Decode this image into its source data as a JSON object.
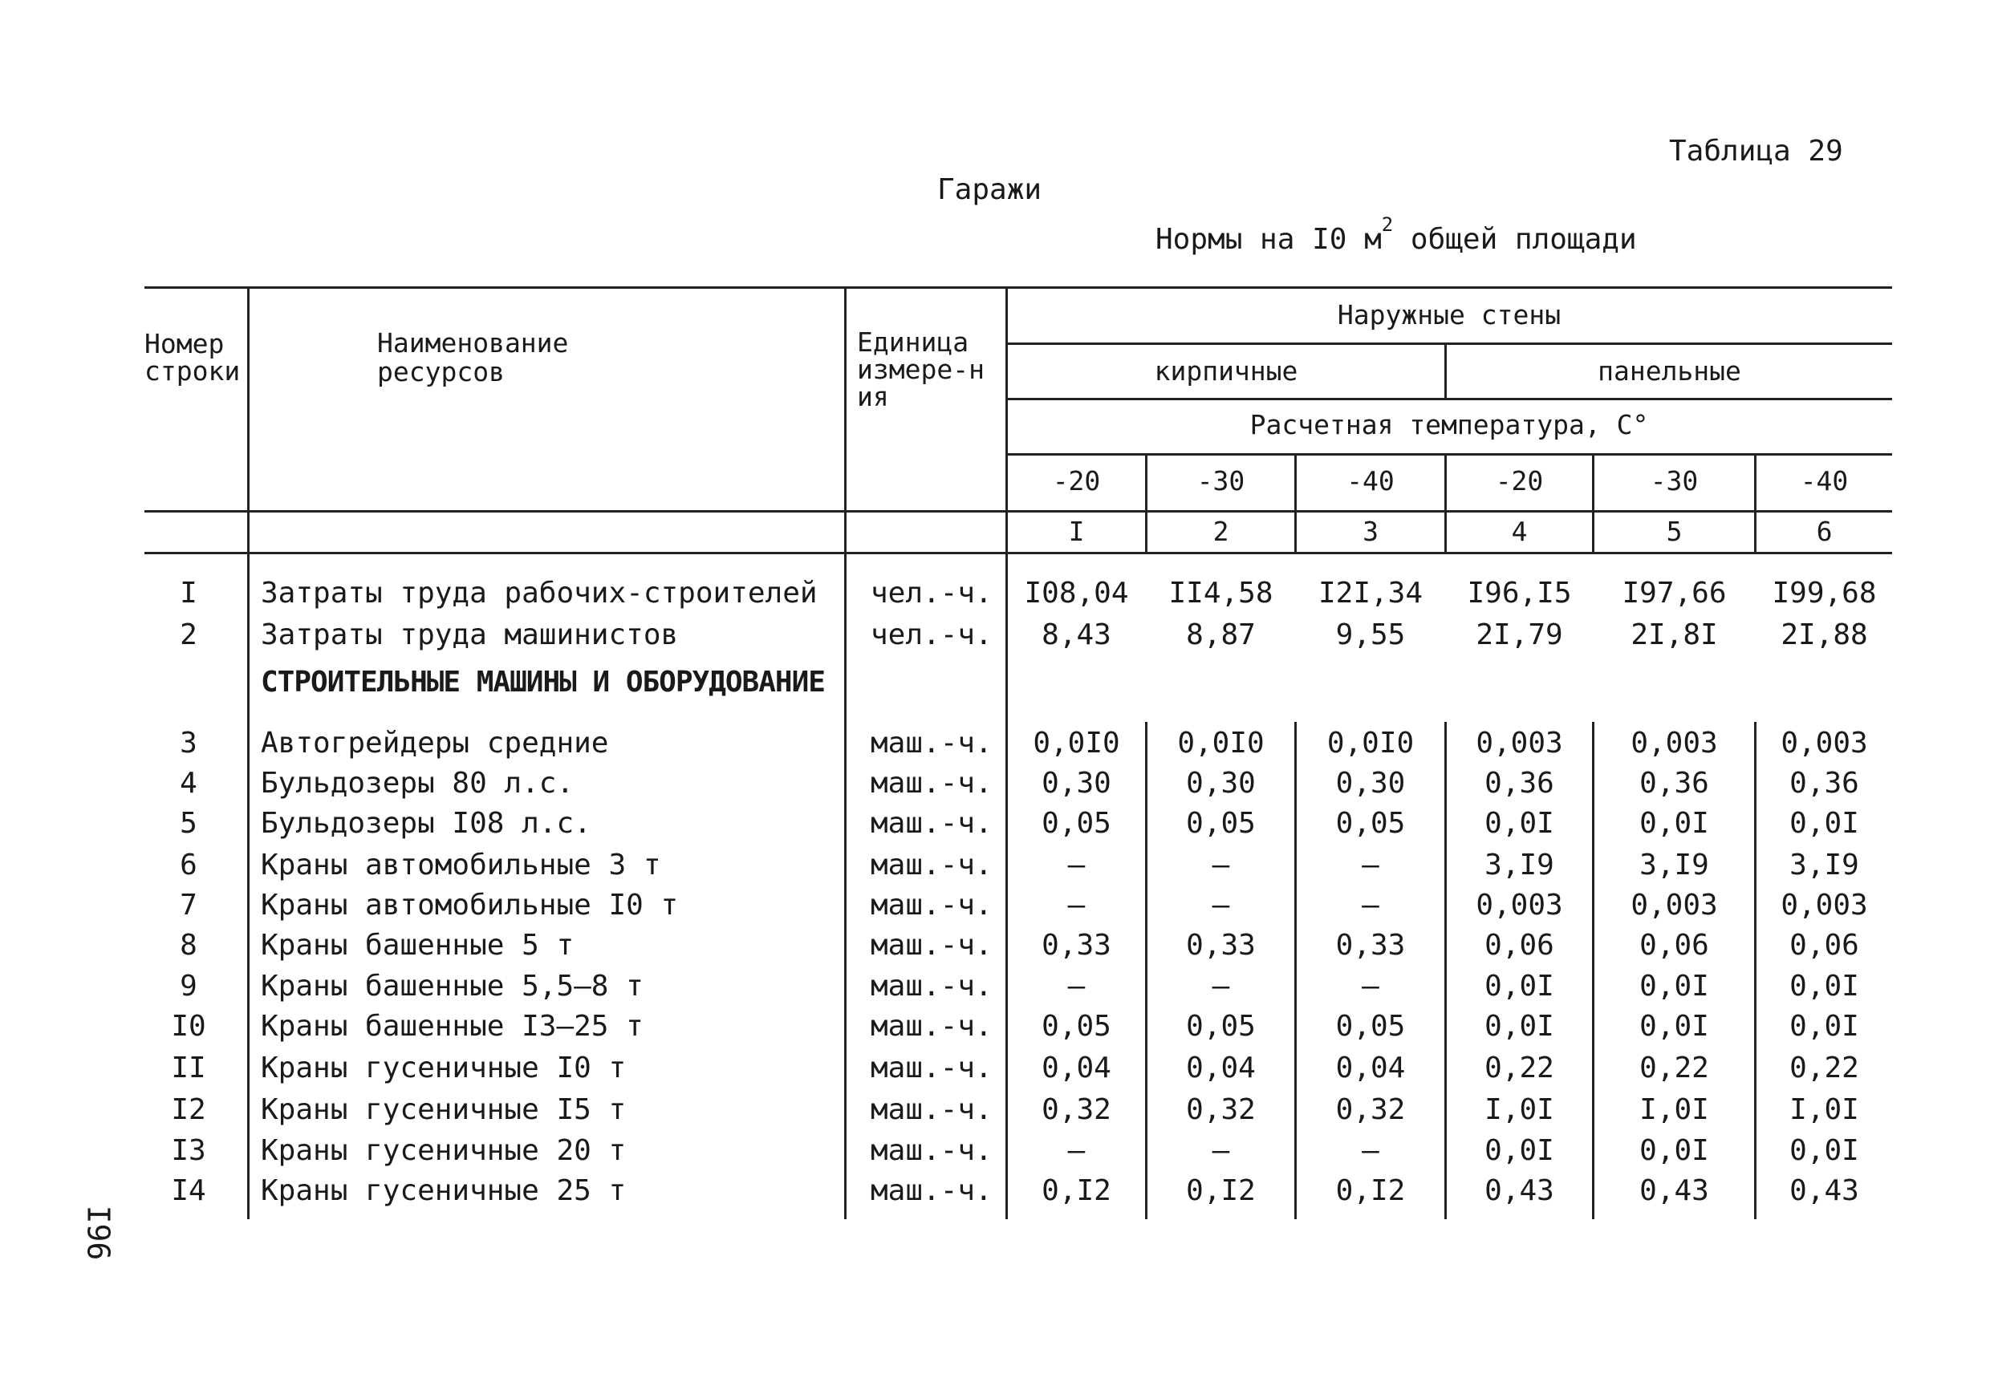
{
  "header": {
    "table_number": "Таблица 29",
    "title": "Гаражи",
    "subtitle_prefix": "Нормы на I0 м",
    "subtitle_sup": "2",
    "subtitle_suffix": " общей площади"
  },
  "columns": {
    "row_number": "Номер строки",
    "name": "Наименование ресурсов",
    "unit": "Единица измере-ния",
    "outer_walls": "Наружные стены",
    "brick": "кирпичные",
    "panel": "панельные",
    "design_temperature": "Расчетная температура, С°",
    "temps": [
      "-20",
      "-30",
      "-40",
      "-20",
      "-30",
      "-40"
    ],
    "col_numbers": [
      "I",
      "2",
      "3",
      "4",
      "5",
      "6"
    ]
  },
  "section_heading": "СТРОИТЕЛЬНЫЕ МАШИНЫ И ОБОРУДОВАНИЕ",
  "rows": [
    {
      "num": "I",
      "name": "Затраты труда рабочих-строителей",
      "unit": "чел.-ч.",
      "values": [
        "I08,04",
        "II4,58",
        "I2I,34",
        "I96,I5",
        "I97,66",
        "I99,68"
      ]
    },
    {
      "num": "2",
      "name": "Затраты труда машинистов",
      "unit": "чел.-ч.",
      "values": [
        "8,43",
        "8,87",
        "9,55",
        "2I,79",
        "2I,8I",
        "2I,88"
      ]
    },
    {
      "num": "3",
      "name": "Автогрейдеры средние",
      "unit": "маш.-ч.",
      "values": [
        "0,0I0",
        "0,0I0",
        "0,0I0",
        "0,003",
        "0,003",
        "0,003"
      ]
    },
    {
      "num": "4",
      "name": "Бульдозеры 80 л.с.",
      "unit": "маш.-ч.",
      "values": [
        "0,30",
        "0,30",
        "0,30",
        "0,36",
        "0,36",
        "0,36"
      ]
    },
    {
      "num": "5",
      "name": "Бульдозеры I08 л.с.",
      "unit": "маш.-ч.",
      "values": [
        "0,05",
        "0,05",
        "0,05",
        "0,0I",
        "0,0I",
        "0,0I"
      ]
    },
    {
      "num": "6",
      "name": "Краны автомобильные 3 т",
      "unit": "маш.-ч.",
      "values": [
        "–",
        "–",
        "–",
        "3,I9",
        "3,I9",
        "3,I9"
      ]
    },
    {
      "num": "7",
      "name": "Краны автомобильные I0 т",
      "unit": "маш.-ч.",
      "values": [
        "–",
        "–",
        "–",
        "0,003",
        "0,003",
        "0,003"
      ]
    },
    {
      "num": "8",
      "name": "Краны башенные 5 т",
      "unit": "маш.-ч.",
      "values": [
        "0,33",
        "0,33",
        "0,33",
        "0,06",
        "0,06",
        "0,06"
      ]
    },
    {
      "num": "9",
      "name": "Краны башенные 5,5–8 т",
      "unit": "маш.-ч.",
      "values": [
        "–",
        "–",
        "–",
        "0,0I",
        "0,0I",
        "0,0I"
      ]
    },
    {
      "num": "I0",
      "name": "Краны башенные I3–25 т",
      "unit": "маш.-ч.",
      "values": [
        "0,05",
        "0,05",
        "0,05",
        "0,0I",
        "0,0I",
        "0,0I"
      ]
    },
    {
      "num": "II",
      "name": "Краны гусеничные I0 т",
      "unit": "маш.-ч.",
      "values": [
        "0,04",
        "0,04",
        "0,04",
        "0,22",
        "0,22",
        "0,22"
      ]
    },
    {
      "num": "I2",
      "name": "Краны гусеничные I5 т",
      "unit": "маш.-ч.",
      "values": [
        "0,32",
        "0,32",
        "0,32",
        "I,0I",
        "I,0I",
        "I,0I"
      ]
    },
    {
      "num": "I3",
      "name": "Краны гусеничные 20 т",
      "unit": "маш.-ч.",
      "values": [
        "–",
        "–",
        "–",
        "0,0I",
        "0,0I",
        "0,0I"
      ]
    },
    {
      "num": "I4",
      "name": "Краны гусеничные 25 т",
      "unit": "маш.-ч.",
      "values": [
        "0,I2",
        "0,I2",
        "0,I2",
        "0,43",
        "0,43",
        "0,43"
      ]
    }
  ],
  "page_number": "I96"
}
